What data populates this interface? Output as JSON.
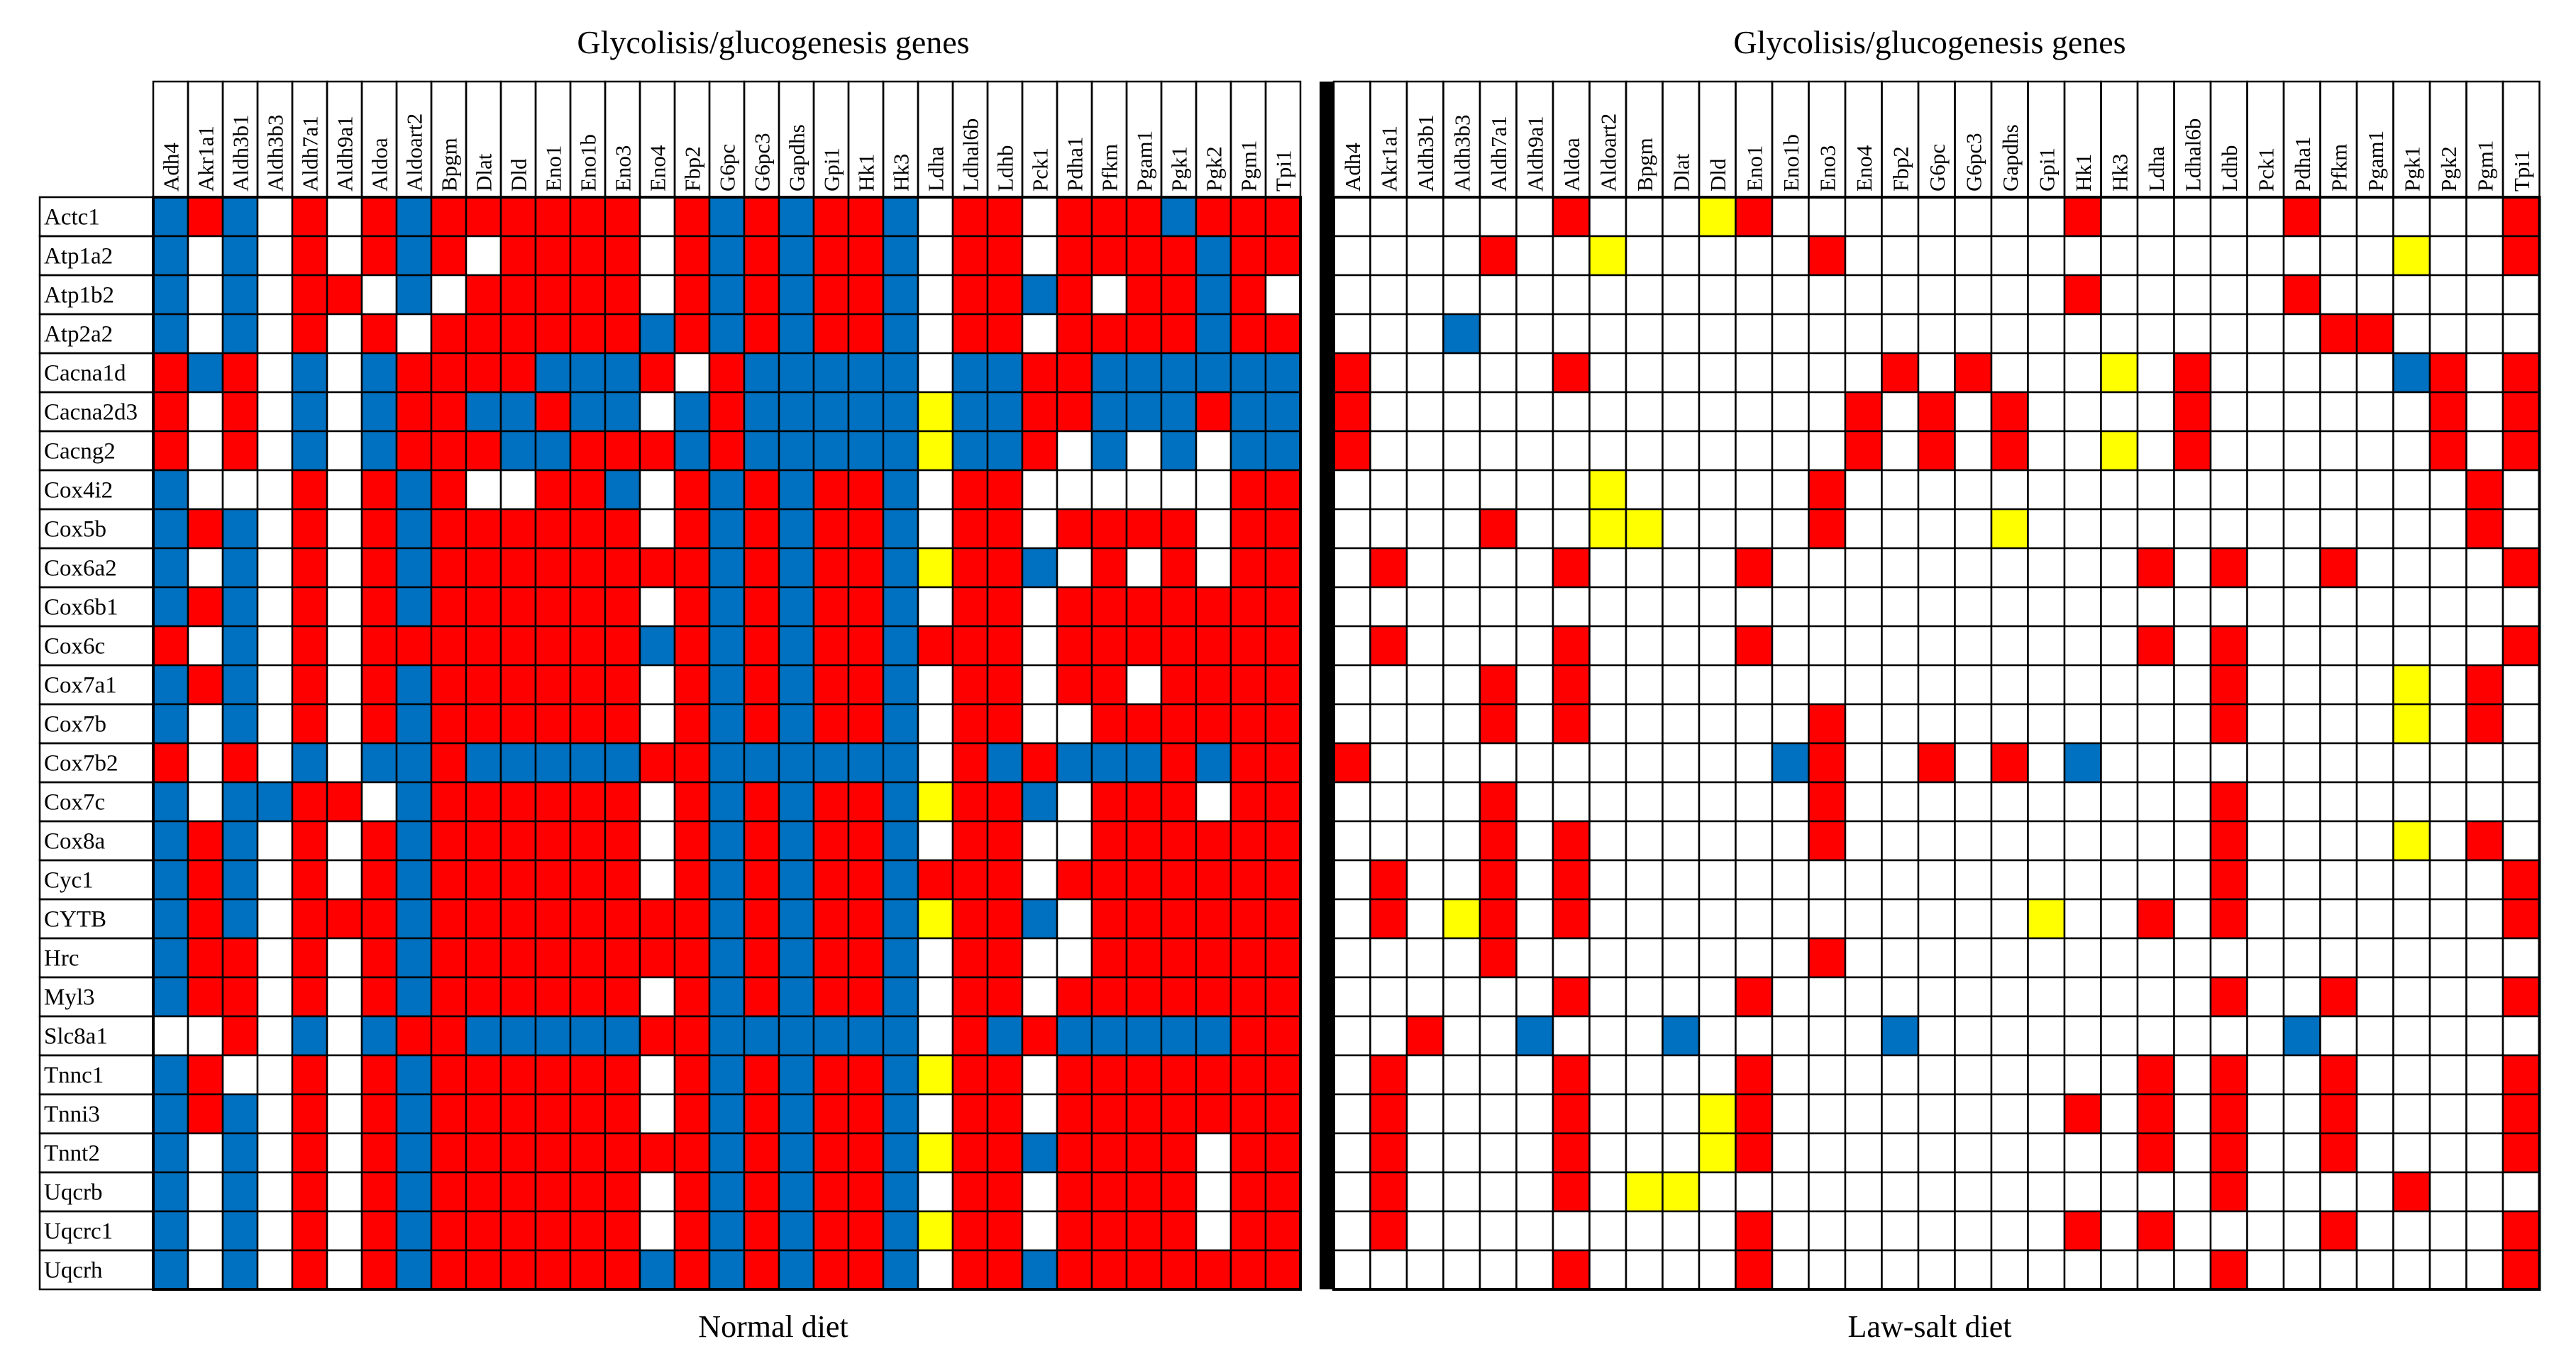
{
  "chart_data": [
    {
      "type": "heatmap",
      "title": "Glycolisis/glucogenesis genes",
      "xlabel": "Normal diet",
      "columns": [
        "Adh4",
        "Akr1a1",
        "Aldh3b1",
        "Aldh3b3",
        "Aldh7a1",
        "Aldh9a1",
        "Aldoa",
        "Aldoart2",
        "Bpgm",
        "Dlat",
        "Dld",
        "Eno1",
        "Eno1b",
        "Eno3",
        "Eno4",
        "Fbp2",
        "G6pc",
        "G6pc3",
        "Gapdhs",
        "Gpi1",
        "Hk1",
        "Hk3",
        "Ldha",
        "Ldhal6b",
        "Ldhb",
        "Pck1",
        "Pdha1",
        "Pfkm",
        "Pgam1",
        "Pgk1",
        "Pgk2",
        "Pgm1",
        "Tpi1"
      ],
      "rows": [
        "Actc1",
        "Atp1a2",
        "Atp1b2",
        "Atp2a2",
        "Cacna1d",
        "Cacna2d3",
        "Cacng2",
        "Cox4i2",
        "Cox5b",
        "Cox6a2",
        "Cox6b1",
        "Cox6c",
        "Cox7a1",
        "Cox7b",
        "Cox7b2",
        "Cox7c",
        "Cox8a",
        "Cyc1",
        "CYTB",
        "Hrc",
        "Myl3",
        "Slc8a1",
        "Tnnc1",
        "Tnni3",
        "Tnnt2",
        "Uqcrb",
        "Uqcrc1",
        "Uqcrh"
      ],
      "legend": {
        "R": "#ff0000",
        "B": "#0070c0",
        "Y": "#ffff00",
        "W": "#ffffff"
      },
      "cells": [
        "BRBWRWRBRRRRRRWRBRBRRBWRRWRRRBRRR",
        "BWBWRWRBRWRRRRWRBRBRRBWRRWRRRRBRR",
        "BWBWRRWBWRRRRRWRBRBRRBWRRBRWRRBRW",
        "BWBWRWRWRRRRRRBRBRBRRBWRRWRRRRBRR",
        "RBRWBWBRRRRBBBRWRBBBBBWBBRRBBBBBB",
        "RWRWBWBRRBBRBBWBRBBBBBYBBRRBBBRBB",
        "RWRWBWBRRRBBRRRBRBBBBBYBBRWBWBWBB",
        "BWWWRWRBRWWRRBWRBRBRRBWRRWWWWWWRR",
        "BRBWRWRBRRRRRRWRBRBRRBWRRWRRRRWRR",
        "BWBWRWRBRRRRRRRRBRBRRBYRRBWRWRWRR",
        "BRBWRWRBRRRRRRWRBRBRRBWRRWRRRRRRR",
        "RWBWRWRRRRRRRRBRBRBRRBRRRWRRRRRRR",
        "BRBWRWRBRRRRRRWRBRBRRBWRRWRRWRRRR",
        "BWBWRWRBRRRRRRWRBRBRRBWRRWWRRRRRR",
        "RWRWBWBBRBBBBBRRBBBBBBWRBRBBBRBRR",
        "BWBBRRWBRRRRRRWRBRBRRBYRRBWRRRWRR",
        "BRBWRWRBRRRRRRWRBRBRRBWRRWWRRRRRR",
        "BRBWRWRBRRRRRRWRBRBRRBRRRWRRRRRRR",
        "BRBWRRRBRRRRRRRRBRBRRBYRRBWRRRRRR",
        "BRRWRWRBRRRRRRRRBRBRRBWRRWWRRRRRR",
        "BRRWRWRBRRRRRRWRBRBRRBWRRWRRRRRRR",
        "WWRWBWBRRBBBBBRRBBBBBBWRBRBBBBBRR",
        "BRWWRWRBRRRRRRWRBRBRRBYRRWRRRRRRR",
        "BRBWRWRBRRRRRRWRBRBRRBWRRWRRRRRRR",
        "BWBWRWRBRRRRRRRRBRBRRBYRRBRRRRWRR",
        "BWBWRWRBRRRRRRWRBRBRRBWRRWRRRRWRR",
        "BWBWRWRBRRRRRRWRBRBRRBYRRWRRRRWRR",
        "BWBWRWRBRRRRRRBRBRBRRBWRRBRRRRRRR"
      ]
    },
    {
      "type": "heatmap",
      "title": "Glycolisis/glucogenesis genes",
      "xlabel": "Law-salt diet",
      "columns": [
        "Adh4",
        "Akr1a1",
        "Aldh3b1",
        "Aldh3b3",
        "Aldh7a1",
        "Aldh9a1",
        "Aldoa",
        "Aldoart2",
        "Bpgm",
        "Dlat",
        "Dld",
        "Eno1",
        "Eno1b",
        "Eno3",
        "Eno4",
        "Fbp2",
        "G6pc",
        "G6pc3",
        "Gapdhs",
        "Gpi1",
        "Hk1",
        "Hk3",
        "Ldha",
        "Ldhal6b",
        "Ldhb",
        "Pck1",
        "Pdha1",
        "Pfkm",
        "Pgam1",
        "Pgk1",
        "Pgk2",
        "Pgm1",
        "Tpi1"
      ],
      "rows": [
        "Actc1",
        "Atp1a2",
        "Atp1b2",
        "Atp2a2",
        "Cacna1d",
        "Cacna2d3",
        "Cacng2",
        "Cox4i2",
        "Cox5b",
        "Cox6a2",
        "Cox6b1",
        "Cox6c",
        "Cox7a1",
        "Cox7b",
        "Cox7b2",
        "Cox7c",
        "Cox8a",
        "Cyc1",
        "CYTB",
        "Hrc",
        "Myl3",
        "Slc8a1",
        "Tnnc1",
        "Tnni3",
        "Tnnt2",
        "Uqcrb",
        "Uqcrc1",
        "Uqcrh"
      ],
      "legend": {
        "R": "#ff0000",
        "B": "#0070c0",
        "Y": "#ffff00",
        "W": "#ffffff"
      },
      "cells": [
        "WWWWWWRWWWYRWWWWWWWWRWWWWWRWWWWWR",
        "WWWWRWWYWWWWWRWWWWWWWWWWWWWWWYWWR",
        "WWWWWWWWWWWWWWWWWWWWRWWWWWRWWWWWW",
        "WWWBWWWWWWWWWWWWWWWWWWWWWWWRRWWWW",
        "RWWWWWRWWWWWWWWRWRWWWYWRWWWWWBRWR",
        "RWWWWWWWWWWWWWRWRWRWWWWRWWWWWWRWR",
        "RWWWWWWWWWWWWWRWRWRWWYWRWWWWWWRWR",
        "WWWWWWWYWWWWWRWWWWWWWWWWWWWWWWWRW",
        "WWWWRWWYYWWWWRWWWWYWWWWWWWWWWWWRW",
        "WRWWWWRWWWWRWWWWWWWWWWRWRWWRWWWWR",
        "WWWWWWWWWWWWWWWWWWWWWWWWWWWWWWWWW",
        "WRWWWWRWWWWRWWWWWWWWWWRWRWWWWWWWR",
        "WWWWRWRWWWWWWWWWWWWWWWWWRWWWWYWRW",
        "WWWWRWRWWWWWWRWWWWWWWWWWRWWWWYWRW",
        "RWWWWWWWWWWWBRWWRWRWBWWWWWWWWWWWW",
        "WWWWRWWWWWWWWRWWWWWWWWWWRWWWWWWWW",
        "WWWWRWRWWWWWWRWWWWWWWWWWRWWWWYWRW",
        "WRWWRWRWWWWWWWWWWWWWWWWWRWWWWWWWR",
        "WRWYRWRWWWWWWWWWWWWYWWRWRWWWWWWWR",
        "WWWWRWWWWWWWWRWWWWWWWWWWWWWWWWWWW",
        "WWWWWWRWWWWRWWWWWWWWWWWWRWWRWWWWR",
        "WWRWWBWWWBWWWWWBWWWWWWWWWWBWWWWWW",
        "WRWWWWRWWWWRWWWWWWWWWWRWRWWRWWWWR",
        "WRWWWWRWWWYRWWWWWWWWRWRWRWWRWWWWR",
        "WRWWWWRWWWYRWWWWWWWWWWRWRWWRWWWWR",
        "WRWWWWRWYYWWWWWWWWWWWWWWRWWWWRWWW",
        "WRWWWWWWWWWRWWWWWWWWRWRWWWWRWWWWR",
        "WWWWWWRWWWWRWWWWWWWWWWWWRWWWWWWWR"
      ]
    }
  ]
}
